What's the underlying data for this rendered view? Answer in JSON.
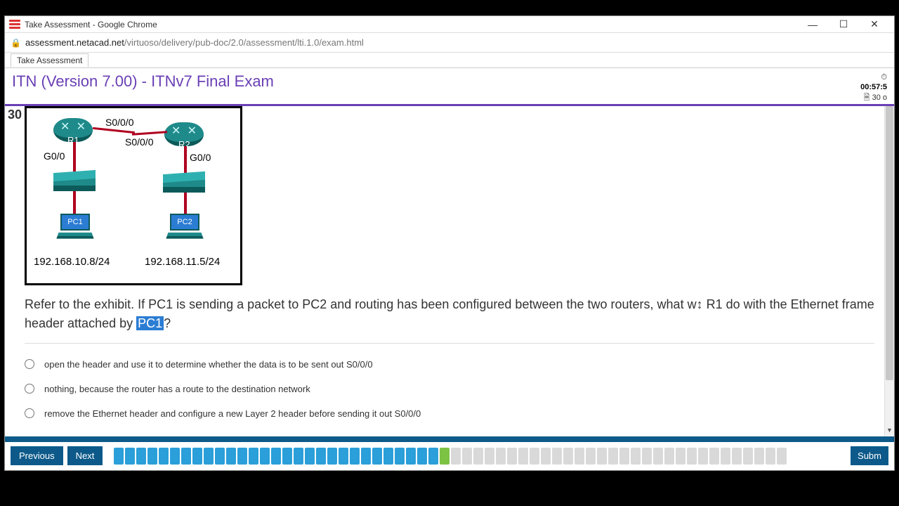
{
  "window": {
    "title": "Take Assessment - Google Chrome",
    "minimize": "—",
    "maximize": "☐",
    "close": "✕"
  },
  "address": {
    "lock": "🔒",
    "host": "assessment.netacad.net",
    "path": "/virtuoso/delivery/pub-doc/2.0/assessment/lti.1.0/exam.html"
  },
  "tab": {
    "label": "Take Assessment"
  },
  "exam": {
    "title": "ITN (Version 7.00) - ITNv7 Final Exam",
    "timer_icon": "⏱",
    "timer": "00:57:5",
    "doc_icon": "🗎",
    "doc": "30 o"
  },
  "question": {
    "number": "30",
    "text_pre": "Refer to the exhibit. If PC1 is sending a packet to PC2 and routing has been configured between the two routers, what w",
    "cursor_glitch": "↕",
    "text_mid": " R1 do with the Ethernet frame header attached by ",
    "highlight": "PC1",
    "text_post": "?"
  },
  "exhibit": {
    "r1": "R1",
    "r2": "R2",
    "s000_top": "S0/0/0",
    "s000_bot": "S0/0/0",
    "g00_left": "G0/0",
    "g00_right": "G0/0",
    "pc1": "PC1",
    "pc2": "PC2",
    "ip1": "192.168.10.8/24",
    "ip2": "192.168.11.5/24"
  },
  "answers": [
    "open the header and use it to determine whether the data is to be sent out S0/0/0",
    "nothing, because the router has a route to the destination network",
    "remove the Ethernet header and configure a new Layer 2 header before sending it out S0/0/0"
  ],
  "nav": {
    "prev": "Previous",
    "next": "Next",
    "submit": "Subm"
  },
  "progress": {
    "total": 60,
    "answered_upto": 29,
    "current": 30,
    "colors": {
      "answered": "#2b9fd9",
      "current": "#7cc243",
      "unanswered": "#d9d9d9"
    }
  }
}
